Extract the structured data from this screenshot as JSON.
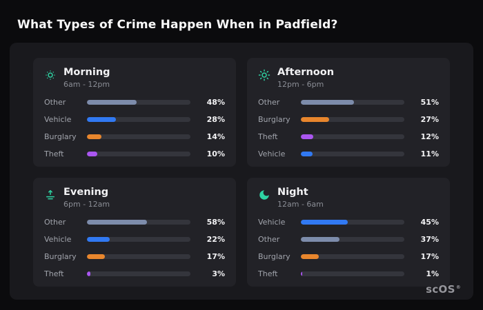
{
  "page": {
    "title": "What Types of Crime Happen When in Padfield?",
    "logo": {
      "text": "scOS",
      "mark": "®"
    }
  },
  "chart_data": {
    "type": "bar",
    "title": "What Types of Crime Happen When in Padfield?",
    "value_format": "percent",
    "xlim": [
      0,
      100
    ],
    "icon_color": "#2ed3a3",
    "palette": {
      "Other": "#7d8cab",
      "Vehicle": "#3179f2",
      "Burglary": "#e8862d",
      "Theft": "#aa56f0"
    },
    "groups": [
      {
        "id": "morning",
        "title": "Morning",
        "time_range": "6am - 12pm",
        "icon": "sun-dim-icon",
        "bars": [
          {
            "label": "Other",
            "value": 48
          },
          {
            "label": "Vehicle",
            "value": 28
          },
          {
            "label": "Burglary",
            "value": 14
          },
          {
            "label": "Theft",
            "value": 10
          }
        ]
      },
      {
        "id": "afternoon",
        "title": "Afternoon",
        "time_range": "12pm - 6pm",
        "icon": "sun-icon",
        "bars": [
          {
            "label": "Other",
            "value": 51
          },
          {
            "label": "Burglary",
            "value": 27
          },
          {
            "label": "Theft",
            "value": 12
          },
          {
            "label": "Vehicle",
            "value": 11
          }
        ]
      },
      {
        "id": "evening",
        "title": "Evening",
        "time_range": "6pm - 12am",
        "icon": "sunrise-icon",
        "bars": [
          {
            "label": "Other",
            "value": 58
          },
          {
            "label": "Vehicle",
            "value": 22
          },
          {
            "label": "Burglary",
            "value": 17
          },
          {
            "label": "Theft",
            "value": 3
          }
        ]
      },
      {
        "id": "night",
        "title": "Night",
        "time_range": "12am - 6am",
        "icon": "moon-icon",
        "bars": [
          {
            "label": "Vehicle",
            "value": 45
          },
          {
            "label": "Other",
            "value": 37
          },
          {
            "label": "Burglary",
            "value": 17
          },
          {
            "label": "Theft",
            "value": 1
          }
        ]
      }
    ]
  }
}
